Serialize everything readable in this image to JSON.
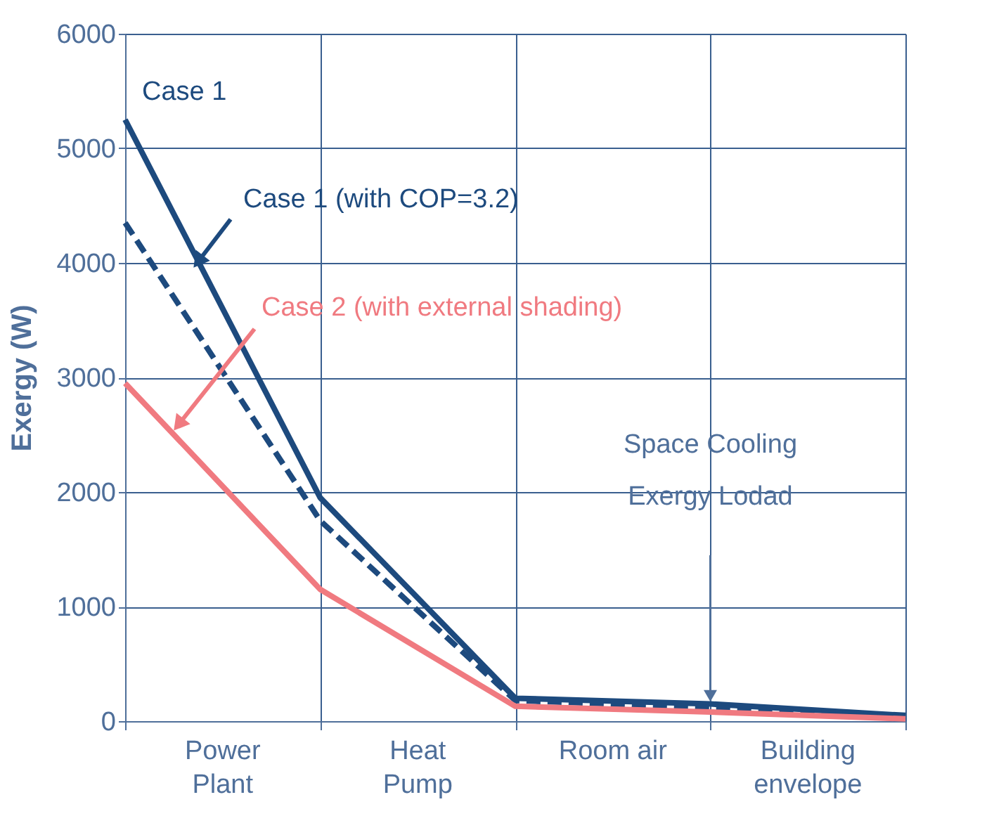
{
  "chart_data": {
    "type": "line",
    "ylabel": "Exergy (W)",
    "categories": [
      null,
      null,
      null,
      null,
      null
    ],
    "ylim": [
      0,
      6000
    ],
    "yticks": [
      0,
      1000,
      2000,
      3000,
      4000,
      5000,
      6000
    ],
    "grid": true,
    "marker": "none",
    "series": [
      {
        "name": "Case 1",
        "color": "#1d4a7e",
        "line_style": "solid",
        "values": [
          5250,
          1950,
          200,
          150,
          50
        ]
      },
      {
        "name": "Case 1 (with COP=3.2)",
        "color": "#1d4a7e",
        "line_style": "dashed",
        "values": [
          4350,
          1750,
          180,
          120,
          40
        ]
      },
      {
        "name": "Case 2 (with external shading)",
        "color": "#f07a80",
        "line_style": "solid",
        "values": [
          2950,
          1150,
          130,
          80,
          20
        ]
      }
    ],
    "annotations": [
      "Power\nPlant",
      "Heat\nPump",
      "Room air",
      "Building\nenvelope",
      "Space Cooling\nExergy Lodad"
    ]
  }
}
